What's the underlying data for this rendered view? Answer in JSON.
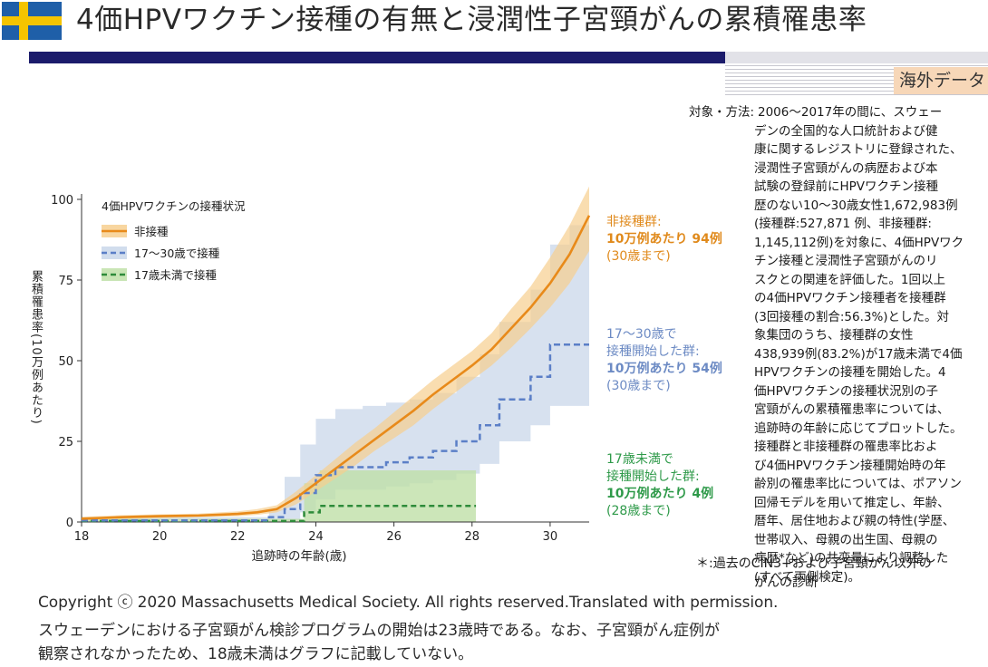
{
  "title": "4価HPVワクチン接種の有無と浸潤性子宮頸がんの累積罹患率",
  "badge": "海外データ",
  "colors": {
    "header_bar": "#1b1b6b",
    "unvaccinated": "#e88a1a",
    "vacc_17_30": "#5b7fc7",
    "vacc_under17": "#2e8b3a",
    "ci_unvaccinated": "#f7cf8f",
    "ci_17_30": "#c9d7ea",
    "ci_under17": "#bfe0a8"
  },
  "method": {
    "label": "対象・方法:",
    "lines": [
      "2006～2017年の間に、スウェー",
      "デンの全国的な人口統計および健",
      "康に関するレジストリに登録された、",
      "浸潤性子宮頸がんの病歴および本",
      "試験の登録前にHPVワクチン接種",
      "歴のない10～30歳女性1,672,983例",
      "(接種群:527,871 例、非接種群:",
      "1,145,112例)を対象に、4価HPVワク",
      "チン接種と浸潤性子宮頸がんのリ",
      "スクとの関連を評価した。1回以上",
      "の4価HPVワクチン接種者を接種群",
      "(3回接種の割合:56.3%)とした。対",
      "象集団のうち、接種群の女性",
      "438,939例(83.2%)が17歳未満で4価",
      "HPVワクチンの接種を開始した。4",
      "価HPVワクチンの接種状況別の子",
      "宮頸がんの累積罹患率については、",
      "追跡時の年齢に応じてプロットした。",
      "接種群と非接種群の罹患率比およ",
      "び4価HPVワクチン接種開始時の年",
      "齢別の罹患率比については、ポアソン",
      "回帰モデルを用いて推定し、年齢、",
      "暦年、居住地および親の特性(学歴、",
      "世帯収入、母親の出生国、母親の",
      "病歴*など)の共変量により調整した",
      "(すべて両側検定)。"
    ],
    "note_line1": "＊:過去のCIN3+および子宮頸がん以外の",
    "note_line2": "がんの診断"
  },
  "copyright": "Copyright ⓒ 2020 Massachusetts Medical Society. All rights reserved.Translated with permission.",
  "footnote": [
    "スウェーデンにおける子宮頸がん検診プログラムの開始は23歳時である。なお、子宮頸がん症例が",
    "観察されなかったため、18歳未満はグラフに記載していない。"
  ],
  "annotations": {
    "unvacc": {
      "l1": "非接種群:",
      "l2": "10万例あたり 94例",
      "l3": "(30歳まで)"
    },
    "v1730": {
      "l1": "17～30歳で",
      "l2": "接種開始した群:",
      "l3": "10万例あたり 54例",
      "l4": "(30歳まで)"
    },
    "vu17": {
      "l1": "17歳未満で",
      "l2": "接種開始した群:",
      "l3": "10万例あたり 4例",
      "l4": "(28歳まで)"
    }
  },
  "chart_data": {
    "type": "line",
    "title": "",
    "xlabel": "追跡時の年齢(歳)",
    "ylabel": "累積罹患率(10万例あたり)",
    "xlim": [
      18,
      31
    ],
    "ylim": [
      0,
      100
    ],
    "xticks": [
      18,
      20,
      22,
      24,
      26,
      28,
      30
    ],
    "yticks": [
      0,
      25,
      50,
      75,
      100
    ],
    "legend_title": "4価HPVワクチンの接種状況",
    "legend_position": "top-left",
    "series": [
      {
        "name": "非接種",
        "style": "solid",
        "color": "#e88a1a",
        "x": [
          18,
          19,
          20,
          21,
          22,
          22.5,
          23,
          23.5,
          24,
          24.5,
          25,
          25.5,
          26,
          26.5,
          27,
          27.5,
          28,
          28.5,
          29,
          29.5,
          30,
          30.5,
          31
        ],
        "y": [
          1,
          1.5,
          1.8,
          2,
          2.5,
          3,
          4,
          7.5,
          12,
          16.5,
          21,
          25.5,
          30,
          34.5,
          39.5,
          44,
          48.5,
          53.5,
          60,
          66.5,
          74,
          83,
          95
        ],
        "ci_lower": [
          0.5,
          1,
          1.2,
          1.5,
          1.8,
          2.2,
          3,
          5.5,
          9.5,
          13.5,
          17.5,
          22,
          26,
          30,
          35,
          39.5,
          44,
          48.5,
          54,
          60,
          66.5,
          74,
          84
        ],
        "ci_upper": [
          1.6,
          2.1,
          2.4,
          2.6,
          3.3,
          4,
          5.2,
          9.5,
          14.5,
          19.5,
          24.5,
          29,
          34,
          39,
          44,
          48.5,
          53,
          58.5,
          66,
          73,
          82,
          92,
          104
        ]
      },
      {
        "name": "17～30歳で接種",
        "style": "dashed",
        "color": "#5b7fc7",
        "x": [
          18,
          22.8,
          23.2,
          23.6,
          24.0,
          24.5,
          25.2,
          25.8,
          26.4,
          27.0,
          27.6,
          28.2,
          28.7,
          29.5,
          30.0,
          31
        ],
        "y": [
          0.5,
          1.5,
          4,
          9,
          14.5,
          17,
          17,
          18.5,
          20,
          22,
          25,
          30,
          38,
          45,
          55,
          55
        ],
        "ci_x": [
          18,
          22.8,
          23.2,
          23.6,
          24.0,
          24.5,
          25.2,
          25.8,
          26.4,
          27.0,
          27.6,
          28.2,
          28.7,
          29.5,
          30.0,
          30.5,
          31
        ],
        "ci_lower": [
          0,
          0,
          0.5,
          3,
          7,
          10,
          10,
          11,
          12,
          13,
          15,
          18,
          25,
          30,
          36,
          36,
          36
        ],
        "ci_upper": [
          1.5,
          4,
          14,
          24,
          32,
          35,
          36,
          37,
          38,
          40,
          45,
          52,
          62,
          72,
          86,
          92,
          100
        ]
      },
      {
        "name": "17歳未満で接種",
        "style": "dashed",
        "color": "#2e8b3a",
        "x": [
          18,
          23.4,
          23.7,
          24.1,
          28.1
        ],
        "y": [
          0.3,
          0.3,
          3,
          5,
          5
        ],
        "ci_lower": [
          0,
          0,
          0,
          0,
          0
        ],
        "ci_upper": [
          1,
          1,
          12,
          16,
          16
        ]
      }
    ]
  }
}
